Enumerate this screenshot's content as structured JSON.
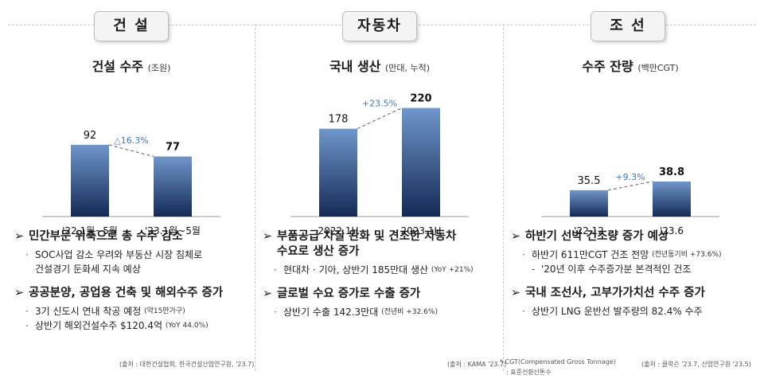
{
  "panels": [
    {
      "section": "건 설",
      "chart_title": "건설 수주",
      "chart_unit": "(조원)",
      "change_label": "△16.3%",
      "bullets": [
        {
          "heading": "민간부문 위축으로 총 수주 감소",
          "subs": [
            {
              "text": "SOC사업 감소 우려와 부동산 시장 침체로",
              "note": ""
            },
            {
              "text": "건설경기 둔화세 지속 예상",
              "note": "",
              "cont": true
            }
          ]
        },
        {
          "heading": "공공분양, 공업용 건축 및 해외수주 증가",
          "subs": [
            {
              "text": "3기 신도시 연내 착공 예정",
              "note": "(약15만가구)"
            },
            {
              "text": "상반기 해외건설수주 $120.4억",
              "note": "(YoY 44.0%)"
            }
          ]
        }
      ],
      "source": "(출처 : 대한건설협회, 한국건설산업연구원, '23.7)"
    },
    {
      "section": "자동차",
      "chart_title": "국내 생산",
      "chart_unit": "(만대, 누적)",
      "change_label": "+23.5%",
      "bullets": [
        {
          "heading": "부품공급 차질 완화 및 견조한 자동차",
          "heading2": "수요로 생산 증가",
          "subs": [
            {
              "text": "현대차 · 기아, 상반기 185만대 생산",
              "note": "(YoY +21%)"
            }
          ]
        },
        {
          "heading": "글로벌 수요 증가로 수출 증가",
          "subs": [
            {
              "text": "상반기 수출 142.3만대",
              "note": "(전년비 +32.6%)"
            }
          ]
        }
      ],
      "source": "(출처 : KAMA '23.7)"
    },
    {
      "section": "조 선",
      "chart_title": "수주 잔량",
      "chart_unit": "(백만CGT)",
      "change_label": "+9.3%",
      "bullets": [
        {
          "heading": "하반기 선박 건조량 증가 예상",
          "subs": [
            {
              "text": "하반기 611만CGT 건조 전망",
              "note": "(전년동기비 +73.6%)"
            },
            {
              "text": "'20년 이후 수주증가분 본격적인 건조",
              "note": "",
              "dash": true
            }
          ]
        },
        {
          "heading": "국내 조선사, 고부가가치선 수주 증가",
          "subs": [
            {
              "text": "상반기 LNG 운반선 발주량의 82.4% 수주",
              "note": ""
            }
          ]
        }
      ],
      "source": "(출처 : 클락슨 '23.7, 산업연구원 '23.5)",
      "footnote1": "* CGT(Compensated Gross Tonnage)",
      "footnote2": ": 표준선환산톤수"
    }
  ],
  "chart_data": [
    {
      "type": "bar",
      "title": "건설 수주 (조원)",
      "categories": [
        "'22.1월~5월",
        "'23.1월~5월"
      ],
      "values": [
        92,
        77
      ],
      "value_labels": [
        "92",
        "77"
      ],
      "annotation": "△16.3%"
    },
    {
      "type": "bar",
      "title": "국내 생산 (만대, 누적)",
      "categories": [
        "2022.1H",
        "2023.1H"
      ],
      "values": [
        178,
        220
      ],
      "value_labels": [
        "178",
        "220"
      ],
      "annotation": "+23.5%"
    },
    {
      "type": "bar",
      "title": "수주 잔량 (백만CGT)",
      "categories": [
        "'22.12",
        "'23.6"
      ],
      "values": [
        35.5,
        38.8
      ],
      "value_labels": [
        "35.5",
        "38.8"
      ],
      "annotation": "+9.3%"
    }
  ],
  "colors": {
    "bar_top": "#6f96cb",
    "bar_bottom": "#142a55",
    "accent_change": "#3c78c8"
  },
  "icons": {
    "bullet_arrow": "arrow-bullet-icon"
  }
}
